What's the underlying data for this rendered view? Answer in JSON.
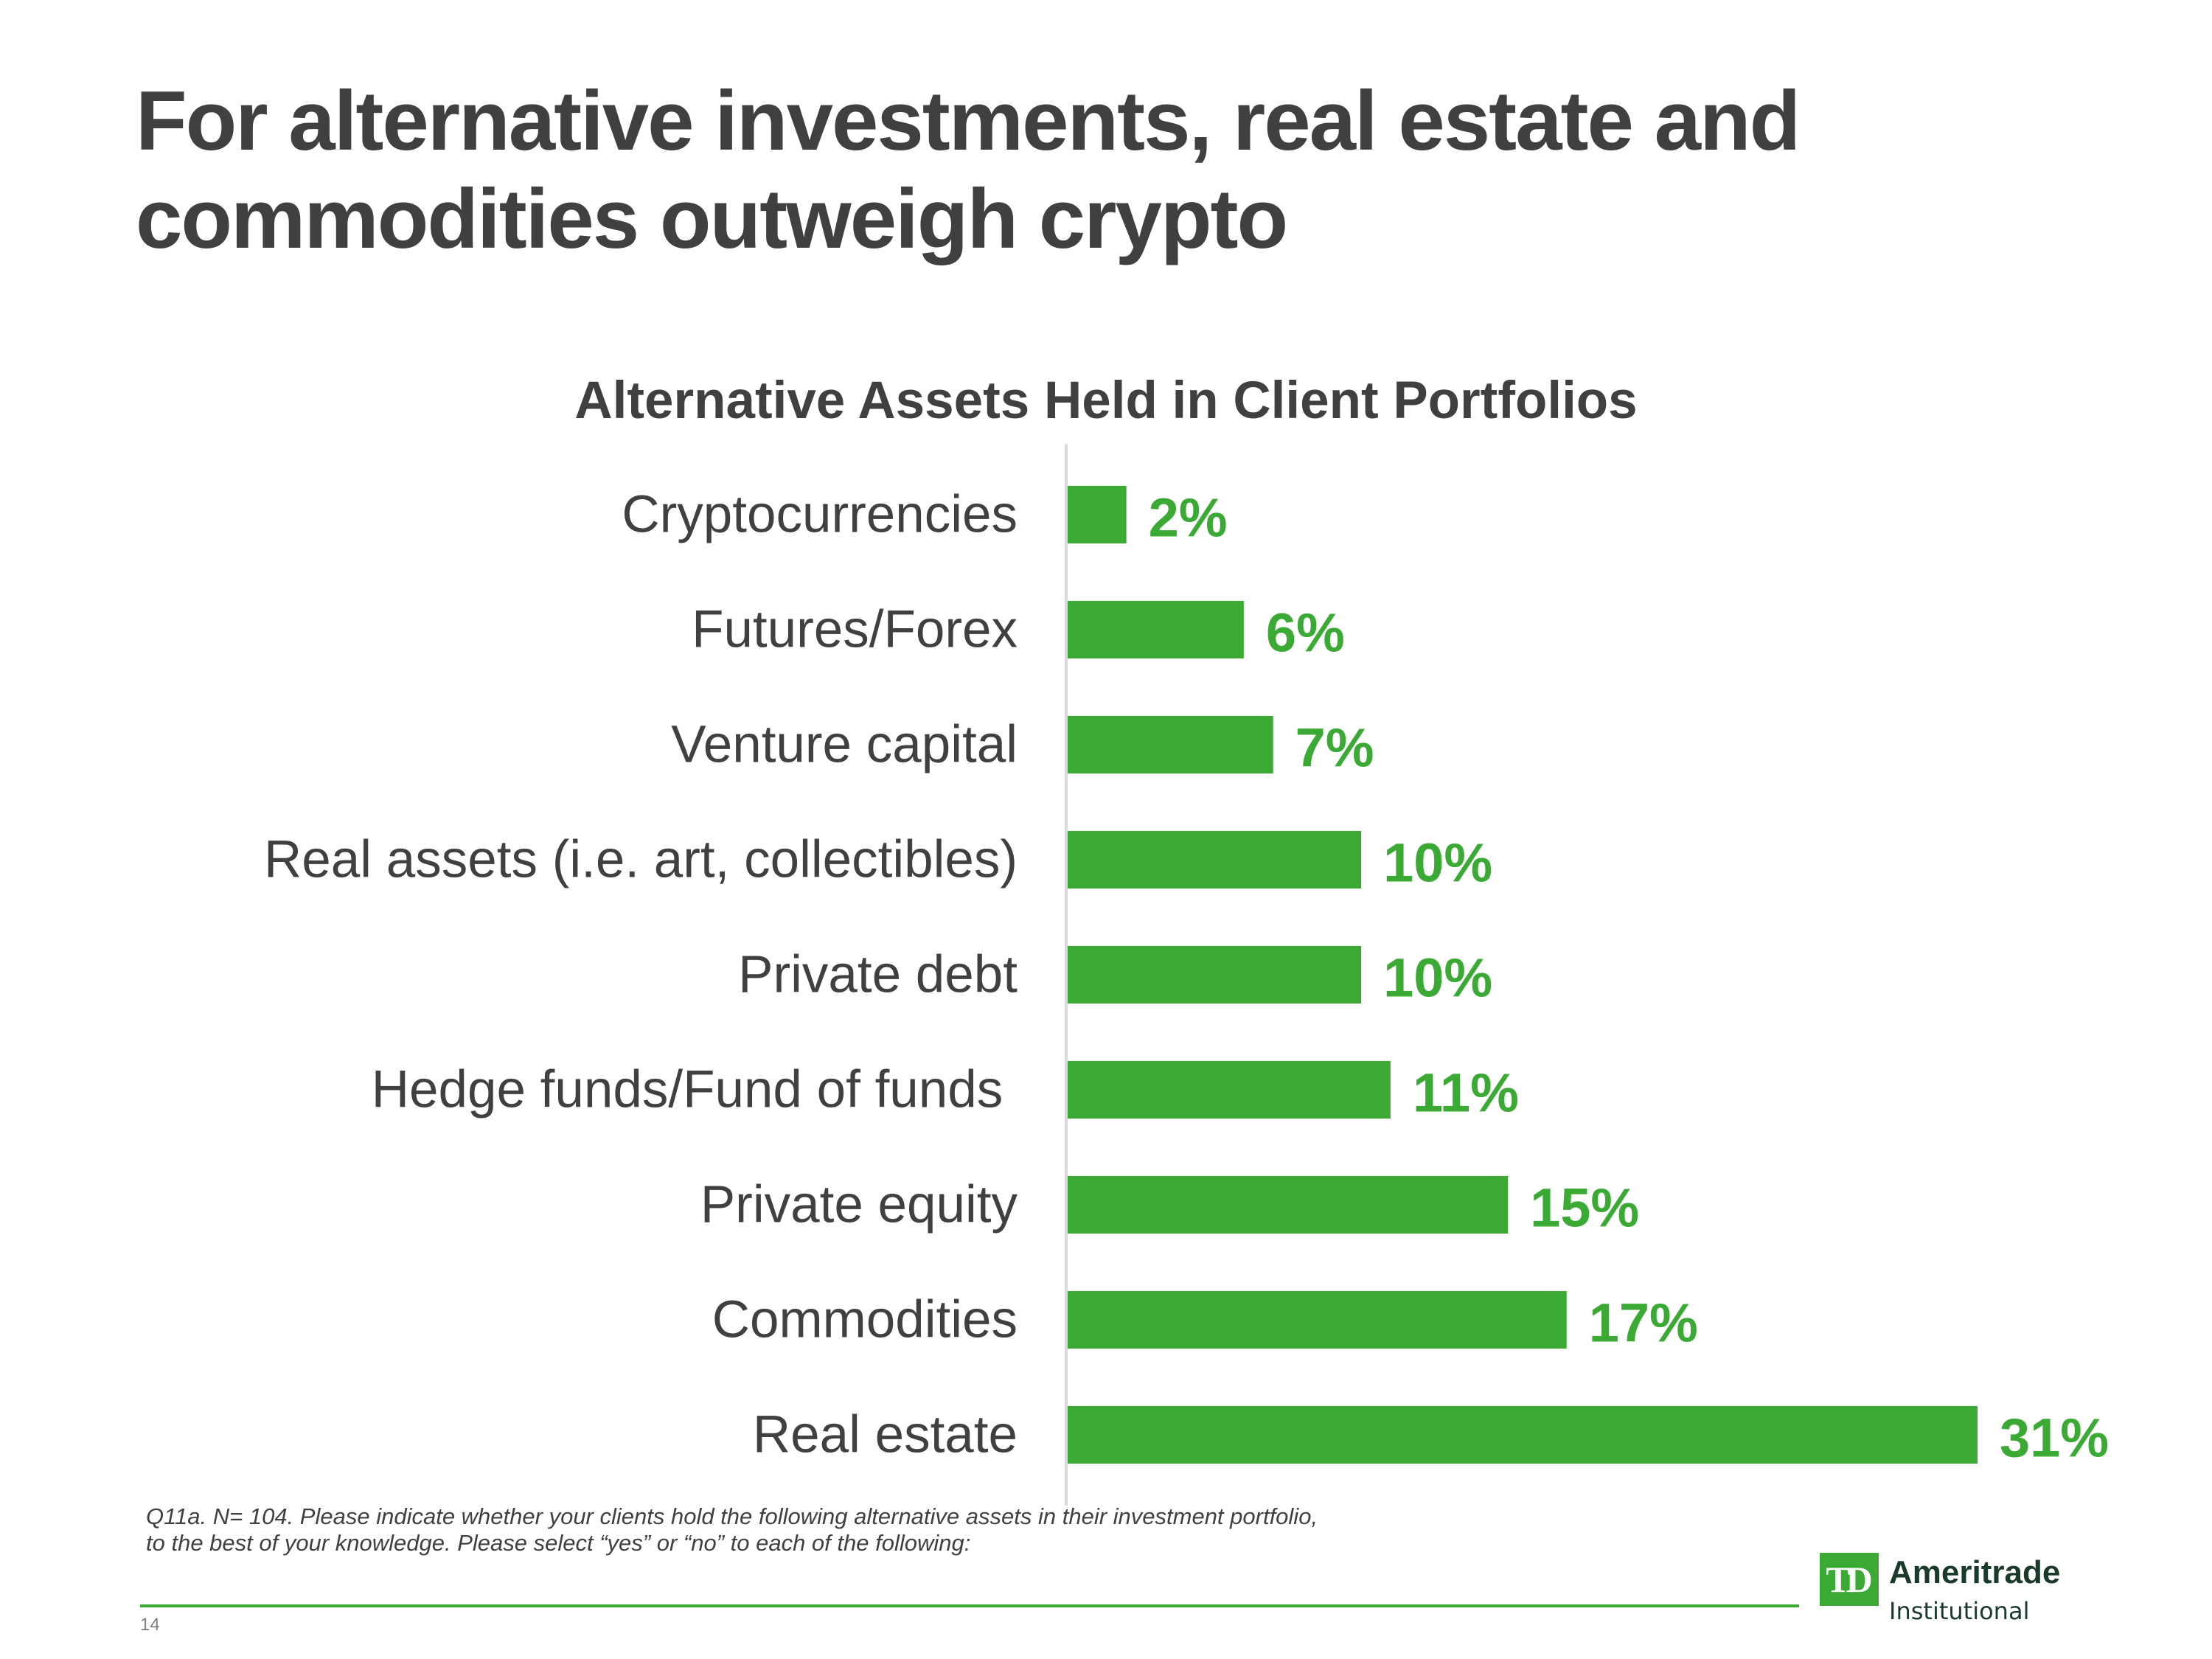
{
  "slide": {
    "title_line1": "For alternative investments, real estate and",
    "title_line2": "commodities outweigh crypto",
    "footnote_line1": "Q11a. N= 104. Please indicate whether your clients hold the following alternative assets in their investment portfolio,",
    "footnote_line2": "to the best of your knowledge. Please select “yes” or “no” to each of the following:",
    "page_number": "14"
  },
  "brand": {
    "logo_text": "TD",
    "name": "Ameritrade",
    "sub": "Institutional"
  },
  "colors": {
    "bar": "#3aaa35",
    "value_label": "#3aaa35",
    "text": "#404040",
    "axis": "#d9d9d9"
  },
  "chart_data": {
    "type": "bar",
    "orientation": "horizontal",
    "title": "Alternative Assets Held in Client Portfolios",
    "categories": [
      "Cryptocurrencies",
      "Futures/Forex",
      "Venture capital",
      "Real assets (i.e. art, collectibles)",
      "Private debt",
      "Hedge funds/Fund of funds ",
      "Private equity",
      "Commodities",
      "Real estate"
    ],
    "values": [
      2,
      6,
      7,
      10,
      10,
      11,
      15,
      17,
      31
    ],
    "value_labels": [
      "2%",
      "6%",
      "7%",
      "10%",
      "10%",
      "11%",
      "15%",
      "17%",
      "31%"
    ],
    "unit": "%",
    "xlim": [
      0,
      31
    ],
    "grid": false,
    "legend": "none"
  }
}
